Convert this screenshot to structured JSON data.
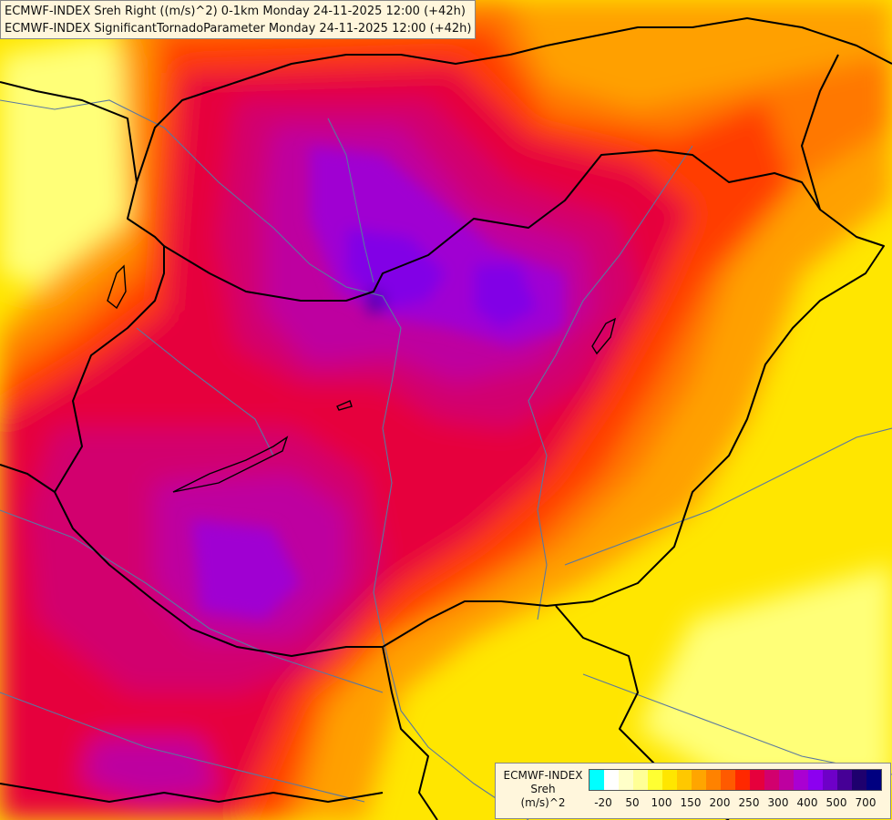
{
  "titles": {
    "line1": "ECMWF-INDEX Sreh Right ((m/s)^2) 0-1km Monday 24-11-2025 12:00 (+42h)",
    "line2": "ECMWF-INDEX SignificantTornadoParameter Monday 24-11-2025 12:00 (+42h)"
  },
  "legend": {
    "title_lines": [
      "ECMWF-INDEX",
      "Sreh",
      "(m/s)^2"
    ],
    "colors": [
      "#00ffff",
      "#ffffff",
      "#ffffc8",
      "#ffff96",
      "#ffff32",
      "#ffe600",
      "#ffc800",
      "#ffa500",
      "#ff8200",
      "#ff5a00",
      "#ff2800",
      "#e6003c",
      "#d2006e",
      "#be00a0",
      "#aa00d2",
      "#8c00f0",
      "#6e00c8",
      "#460096",
      "#1e006e",
      "#000080"
    ],
    "labels": [
      "-20",
      "50",
      "100",
      "150",
      "200",
      "250",
      "300",
      "400",
      "500",
      "700"
    ]
  },
  "palette": {
    "yellow_light": "#ffff78",
    "yellow": "#ffe600",
    "yellow_orange": "#ffc800",
    "orange": "#ffa000",
    "orange_red": "#ff7800",
    "red": "#ff3c00",
    "crimson": "#e6003c",
    "magenta": "#d2006e",
    "purple": "#be00a0",
    "violet": "#a000d2",
    "blue_violet": "#8200e6",
    "dark_violet": "#5a00b4",
    "border_line": "#000000",
    "river_line": "#5a78a0"
  }
}
